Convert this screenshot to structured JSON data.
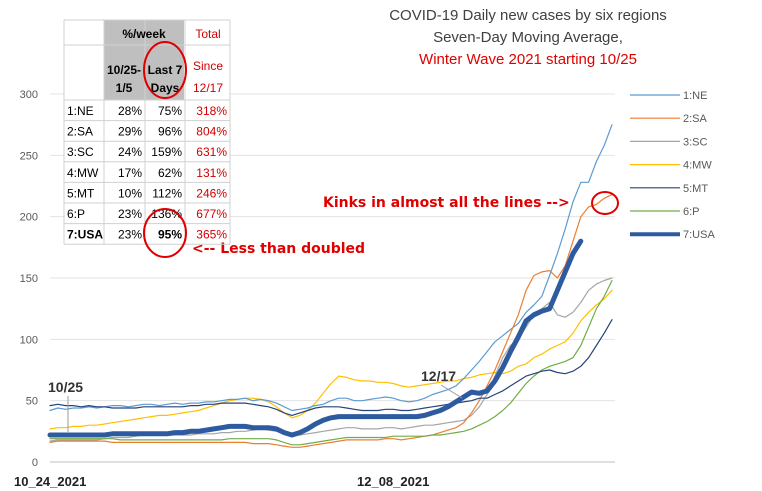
{
  "chart_data": {
    "type": "line",
    "title": "COVID-19 Daily new cases by six regions",
    "subtitle": "Seven-Day Moving Average,",
    "subtitle2": "Winter Wave 2021 starting 10/25",
    "x_labels": [
      "10_24_2021",
      "12_08_2021"
    ],
    "ylim": [
      0,
      300
    ],
    "yticks": [
      "0",
      "50",
      "100",
      "150",
      "200",
      "250",
      "300"
    ],
    "legend_position": "right",
    "series": [
      {
        "name": "1:NE",
        "color": "#5b9bd5",
        "width": 1.2,
        "values": [
          42,
          44,
          43,
          44,
          44,
          45,
          44,
          45,
          46,
          46,
          45,
          46,
          47,
          47,
          46,
          47,
          48,
          47,
          48,
          48,
          49,
          49,
          50,
          51,
          51,
          52,
          50,
          51,
          50,
          48,
          45,
          42,
          43,
          44,
          46,
          47,
          50,
          52,
          52,
          50,
          50,
          51,
          52,
          53,
          52,
          50,
          49,
          50,
          52,
          55,
          57,
          59,
          62,
          68,
          75,
          82,
          90,
          98,
          103,
          108,
          113,
          122,
          128,
          135,
          152,
          170,
          190,
          212,
          228,
          228,
          245,
          258,
          275
        ]
      },
      {
        "name": "2:SA",
        "color": "#ed7d31",
        "width": 1.2,
        "values": [
          16,
          17,
          17,
          17,
          17,
          17,
          17,
          17,
          16,
          16,
          16,
          16,
          16,
          16,
          16,
          16,
          16,
          16,
          16,
          16,
          16,
          16,
          16,
          16,
          16,
          16,
          15,
          15,
          15,
          14,
          13,
          12,
          12,
          13,
          14,
          15,
          16,
          17,
          18,
          18,
          18,
          18,
          18,
          19,
          19,
          18,
          19,
          20,
          21,
          22,
          24,
          26,
          28,
          32,
          40,
          50,
          62,
          75,
          90,
          105,
          120,
          140,
          152,
          155,
          156,
          150,
          160,
          180,
          200,
          208,
          210,
          215,
          218
        ]
      },
      {
        "name": "3:SC",
        "color": "#a5a5a5",
        "width": 1.2,
        "values": [
          17,
          18,
          18,
          18,
          18,
          18,
          18,
          19,
          20,
          20,
          20,
          21,
          22,
          22,
          22,
          22,
          22,
          22,
          22,
          23,
          23,
          23,
          24,
          24,
          25,
          25,
          26,
          27,
          26,
          25,
          23,
          22,
          22,
          23,
          24,
          25,
          26,
          27,
          28,
          28,
          27,
          27,
          27,
          28,
          28,
          27,
          28,
          29,
          30,
          30,
          31,
          32,
          33,
          34,
          38,
          45,
          55,
          70,
          85,
          95,
          100,
          110,
          120,
          125,
          130,
          120,
          118,
          122,
          130,
          140,
          145,
          148,
          150
        ]
      },
      {
        "name": "4:MW",
        "color": "#ffc000",
        "width": 1.2,
        "values": [
          27,
          28,
          28,
          29,
          29,
          30,
          30,
          31,
          32,
          33,
          34,
          35,
          36,
          37,
          38,
          38,
          39,
          40,
          41,
          42,
          44,
          46,
          48,
          50,
          51,
          52,
          52,
          51,
          49,
          45,
          40,
          36,
          38,
          42,
          48,
          56,
          64,
          70,
          69,
          67,
          66,
          66,
          65,
          65,
          64,
          62,
          61,
          62,
          63,
          64,
          65,
          66,
          66,
          68,
          69,
          71,
          72,
          73,
          72,
          74,
          78,
          80,
          85,
          88,
          92,
          95,
          98,
          105,
          115,
          122,
          128,
          133,
          140
        ]
      },
      {
        "name": "5:MT",
        "color": "#264478",
        "width": 1.2,
        "values": [
          46,
          47,
          46,
          46,
          45,
          46,
          45,
          45,
          44,
          44,
          44,
          44,
          45,
          45,
          45,
          45,
          45,
          45,
          46,
          46,
          47,
          47,
          48,
          48,
          48,
          48,
          47,
          46,
          45,
          43,
          40,
          38,
          40,
          42,
          44,
          45,
          45,
          45,
          44,
          43,
          42,
          42,
          42,
          43,
          43,
          42,
          42,
          43,
          44,
          45,
          46,
          47,
          48,
          49,
          50,
          52,
          52,
          55,
          58,
          62,
          66,
          70,
          72,
          74,
          75,
          73,
          72,
          74,
          78,
          85,
          95,
          105,
          116
        ]
      },
      {
        "name": "6:P",
        "color": "#70ad47",
        "width": 1.2,
        "values": [
          19,
          19,
          19,
          19,
          19,
          19,
          19,
          19,
          19,
          18,
          18,
          18,
          18,
          18,
          18,
          18,
          18,
          18,
          18,
          18,
          18,
          18,
          18,
          19,
          19,
          19,
          19,
          19,
          19,
          18,
          16,
          14,
          14,
          15,
          16,
          17,
          18,
          19,
          20,
          20,
          20,
          20,
          20,
          20,
          21,
          21,
          21,
          21,
          21,
          22,
          22,
          23,
          24,
          25,
          27,
          30,
          33,
          37,
          42,
          48,
          56,
          64,
          70,
          75,
          78,
          80,
          82,
          85,
          95,
          110,
          125,
          135,
          148
        ]
      },
      {
        "name": "7:USA",
        "color": "#2e5aa0",
        "width": 5,
        "values": [
          22,
          22,
          22,
          22,
          22,
          22,
          22,
          22,
          23,
          23,
          23,
          23,
          23,
          23,
          23,
          23,
          24,
          24,
          25,
          25,
          26,
          27,
          28,
          29,
          29,
          29,
          28,
          28,
          28,
          27,
          24,
          22,
          24,
          27,
          31,
          34,
          36,
          37,
          37,
          37,
          37,
          37,
          37,
          37,
          37,
          37,
          37,
          37,
          38,
          40,
          42,
          45,
          49,
          53,
          57,
          56,
          58,
          66,
          77,
          90,
          102,
          115,
          120,
          123,
          125,
          140,
          155,
          170,
          180
        ]
      }
    ],
    "annotations": {
      "kinks": "Kinks in almost all the lines -->",
      "less_doubled": "<-- Less than doubled",
      "start_date": "10/25",
      "mid_date": "12/17"
    },
    "table": {
      "header_perweek": "%/week",
      "header_total": "Total",
      "header_since": "Since",
      "col1_line1": "10/25-",
      "col1_line2": "1/5",
      "col2_line1": "Last 7",
      "col2_line2": "Days",
      "col3_date": "12/17",
      "rows": [
        {
          "region": "1:NE",
          "a": "28%",
          "b": "75%",
          "c": "318%"
        },
        {
          "region": "2:SA",
          "a": "29%",
          "b": "96%",
          "c": "804%"
        },
        {
          "region": "3:SC",
          "a": "24%",
          "b": "159%",
          "c": "631%"
        },
        {
          "region": "4:MW",
          "a": "17%",
          "b": "62%",
          "c": "131%"
        },
        {
          "region": "5:MT",
          "a": "10%",
          "b": "112%",
          "c": "246%"
        },
        {
          "region": "6:P",
          "a": "23%",
          "b": "136%",
          "c": "677%"
        },
        {
          "region": "7:USA",
          "a": "23%",
          "b": "95%",
          "c": "365%"
        }
      ]
    }
  }
}
